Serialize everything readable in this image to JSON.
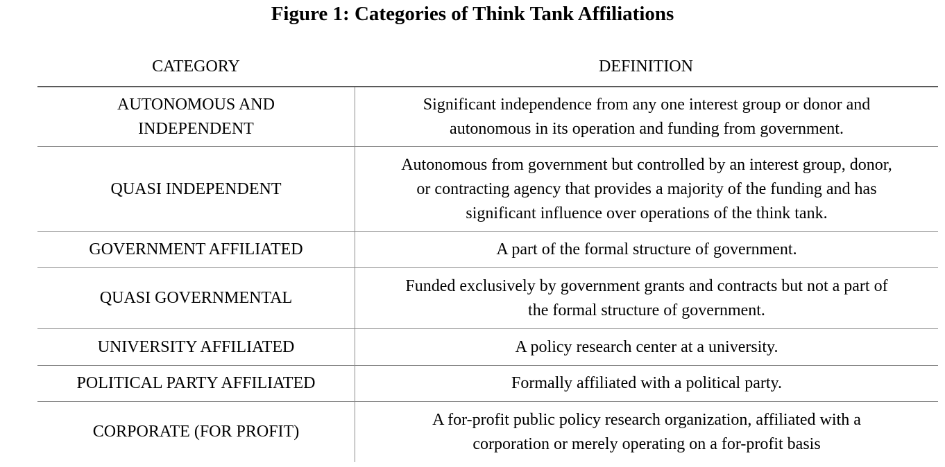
{
  "title": "Figure 1: Categories of Think Tank Affiliations",
  "headers": {
    "category": "CATEGORY",
    "definition": "DEFINITION"
  },
  "rows": [
    {
      "category": [
        "AUTONOMOUS AND",
        "INDEPENDENT"
      ],
      "definition": [
        "Significant independence from any one interest group or donor and",
        "autonomous in its operation and funding from government."
      ]
    },
    {
      "category": [
        "QUASI INDEPENDENT"
      ],
      "definition": [
        "Autonomous from government but controlled by an interest group, donor,",
        "or contracting agency that provides a majority of the funding and has",
        "significant influence over operations of the think tank."
      ]
    },
    {
      "category": [
        "GOVERNMENT AFFILIATED"
      ],
      "definition": [
        "A part of the formal structure of government."
      ]
    },
    {
      "category": [
        "QUASI GOVERNMENTAL"
      ],
      "definition": [
        "Funded exclusively by government grants and contracts but not a part of",
        "the formal structure of government."
      ]
    },
    {
      "category": [
        "UNIVERSITY AFFILIATED"
      ],
      "definition": [
        "A policy research center at a university."
      ]
    },
    {
      "category": [
        "POLITICAL PARTY AFFILIATED"
      ],
      "definition": [
        "Formally affiliated with a political party."
      ]
    },
    {
      "category": [
        "CORPORATE (FOR PROFIT)"
      ],
      "definition": [
        "A for-profit public policy research organization, affiliated with a",
        "corporation or merely operating on a for-profit basis"
      ]
    }
  ]
}
